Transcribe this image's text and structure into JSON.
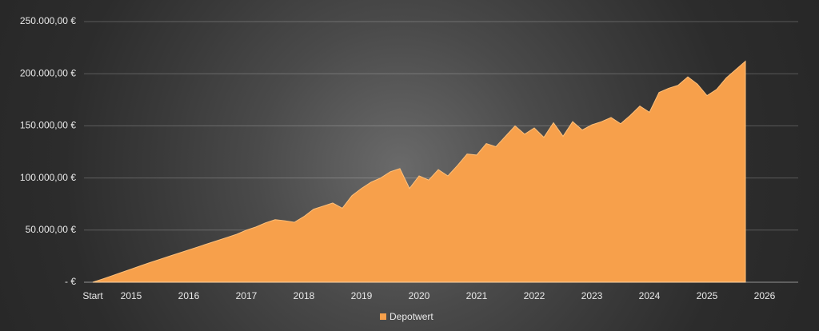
{
  "chart_data": {
    "type": "area",
    "categories": [
      "Start",
      null,
      null,
      null,
      "2015",
      null,
      null,
      null,
      null,
      null,
      "2016",
      null,
      null,
      null,
      null,
      null,
      "2017",
      null,
      null,
      null,
      null,
      null,
      "2018",
      null,
      null,
      null,
      null,
      null,
      "2019",
      null,
      null,
      null,
      null,
      null,
      "2020",
      null,
      null,
      null,
      null,
      null,
      "2021",
      null,
      null,
      null,
      null,
      null,
      "2022",
      null,
      null,
      null,
      null,
      null,
      "2023",
      null,
      null,
      null,
      null,
      null,
      "2024",
      null,
      null,
      null,
      null,
      null,
      "2025",
      null,
      null,
      null,
      null,
      null,
      "2026"
    ],
    "series": [
      {
        "name": "Depotwert",
        "color": "#f7a04b",
        "values": [
          0,
          3000,
          6200,
          9400,
          12600,
          15800,
          19000,
          22000,
          25000,
          28000,
          31000,
          34000,
          37000,
          40000,
          43000,
          46000,
          50000,
          53000,
          57000,
          60000,
          59000,
          57500,
          63000,
          70000,
          73000,
          76000,
          71000,
          83000,
          90000,
          96000,
          100000,
          106000,
          109000,
          90000,
          102000,
          98000,
          108000,
          102000,
          112000,
          123000,
          122000,
          133000,
          130000,
          140000,
          150000,
          142000,
          148000,
          139000,
          153000,
          140000,
          154000,
          146000,
          151000,
          154000,
          158000,
          152000,
          160000,
          169000,
          163000,
          182000,
          186000,
          189000,
          197000,
          190000,
          179000,
          185000,
          196000,
          204000,
          212000,
          null,
          null
        ]
      }
    ],
    "ylim": [
      0,
      250000
    ],
    "yticks": [
      {
        "value": 0,
        "label": "-  €"
      },
      {
        "value": 50000,
        "label": "50.000,00 €"
      },
      {
        "value": 100000,
        "label": "100.000,00 €"
      },
      {
        "value": 150000,
        "label": "150.000,00 €"
      },
      {
        "value": 200000,
        "label": "200.000,00 €"
      },
      {
        "value": 250000,
        "label": "250.000,00 €"
      }
    ],
    "grid": true,
    "legend": "bottom"
  }
}
